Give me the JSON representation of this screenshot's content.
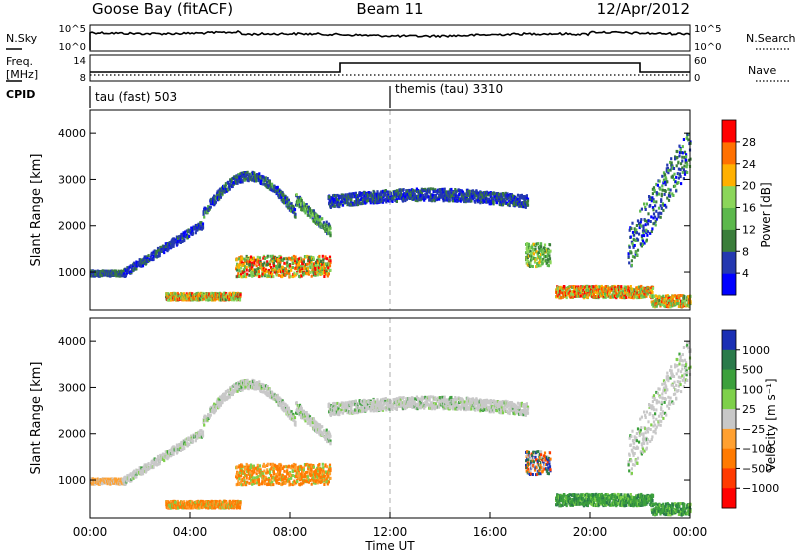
{
  "header": {
    "station": "Goose Bay (fitACF)",
    "beam": "Beam 11",
    "date": "12/Apr/2012"
  },
  "noise_panel": {
    "left_label": "N.Sky",
    "right_label": "N.Search",
    "left_ticks": [
      "10^5",
      "10^0"
    ],
    "right_ticks": [
      "10^5",
      "10^0"
    ]
  },
  "freq_panel": {
    "left_label_1": "Freq.",
    "left_label_2": "[MHz]",
    "right_label": "Nave",
    "left_ticks": [
      "14",
      "8"
    ],
    "right_ticks": [
      "60",
      "0"
    ]
  },
  "cpid": {
    "label": "CPID",
    "segments": [
      {
        "name": "tau (fast) 503",
        "start_hour": 0
      },
      {
        "name": "themis (tau) 3310",
        "start_hour": 12
      }
    ]
  },
  "colors": {
    "power_scale": [
      "#0000ff",
      "#2438b0",
      "#3a7d3a",
      "#5cb84c",
      "#8bd65a",
      "#ffb000",
      "#ff7000",
      "#ff0000"
    ],
    "velocity_scale": [
      "#1a2fb4",
      "#2a7a4a",
      "#3ca03c",
      "#7ed04a",
      "#c8c8c8",
      "#ffa030",
      "#ff7a00",
      "#ff3a00",
      "#ff0000"
    ]
  },
  "chart_data": [
    {
      "type": "heatmap",
      "name": "power",
      "ylabel": "Slant Range [km]",
      "yticks": [
        "1000",
        "2000",
        "3000",
        "4000"
      ],
      "ylim": [
        180,
        4500
      ],
      "xlim": [
        0,
        24
      ],
      "colorbar_label": "Power [dB]",
      "colorbar_ticks": [
        "4",
        "8",
        "12",
        "16",
        "20",
        "24",
        "28"
      ],
      "colorbar_range": [
        0,
        30
      ]
    },
    {
      "type": "heatmap",
      "name": "velocity",
      "ylabel": "Slant Range [km]",
      "yticks": [
        "1000",
        "2000",
        "3000",
        "4000"
      ],
      "ylim": [
        180,
        4500
      ],
      "xlim": [
        0,
        24
      ],
      "colorbar_label": "Velocity [m s⁻¹]",
      "colorbar_ticks": [
        "1000",
        "500",
        "100",
        "25",
        "−25",
        "−100",
        "−500",
        "−1000"
      ]
    }
  ],
  "xaxis": {
    "ticks": [
      "00:00",
      "04:00",
      "08:00",
      "12:00",
      "16:00",
      "20:00",
      "00:00"
    ],
    "label": "Time UT"
  }
}
